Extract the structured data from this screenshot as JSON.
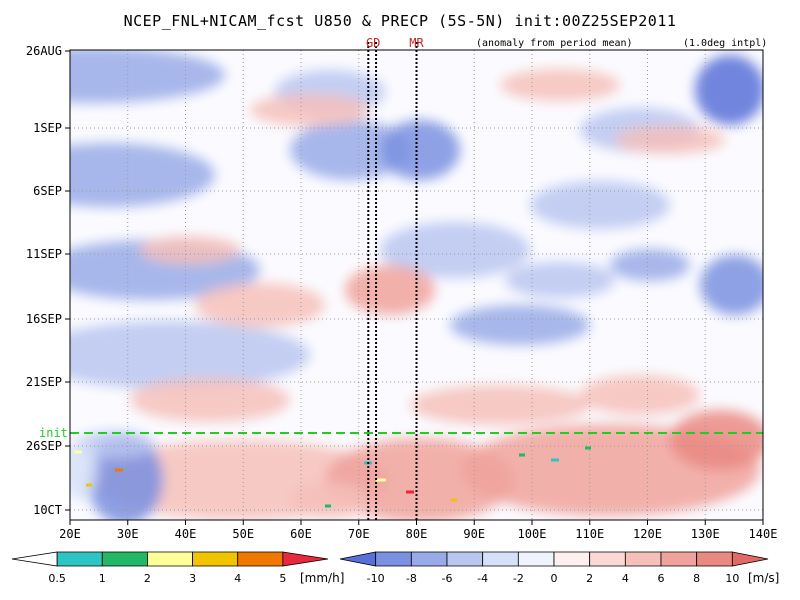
{
  "title": "NCEP_FNL+NICAM_fcst U850 & PRECP (5S-5N) init:00Z25SEP2011",
  "subtitle_left": "(anomaly from period mean)",
  "subtitle_right": "(1.0deg intpl)",
  "chart_data": {
    "type": "heatmap",
    "x_axis": {
      "range": [
        "20E",
        "140E"
      ],
      "ticks": [
        "20E",
        "30E",
        "40E",
        "50E",
        "60E",
        "70E",
        "80E",
        "90E",
        "100E",
        "110E",
        "120E",
        "130E",
        "140E"
      ]
    },
    "y_axis": {
      "range": [
        "26AUG",
        "12OCT"
      ],
      "ticks": [
        "26AUG",
        "1SEP",
        "6SEP",
        "11SEP",
        "16SEP",
        "21SEP",
        "26SEP",
        "10CT"
      ]
    },
    "grid": true,
    "markers": [
      {
        "label": "GD",
        "lon": [
          72,
          73
        ]
      },
      {
        "label": "MR",
        "lon": [
          80
        ]
      }
    ],
    "init_line": {
      "label": "init",
      "date": "25SEP"
    },
    "precip_colorbar": {
      "unit": "[mm/h]",
      "ticks": [
        "0.5",
        "1",
        "2",
        "3",
        "4",
        "5"
      ],
      "colors": [
        "#ffffff",
        "#2ec4c4",
        "#22b866",
        "#ffff99",
        "#f2c400",
        "#f07800",
        "#e8283c"
      ]
    },
    "u850_colorbar": {
      "unit": "[m/s]",
      "ticks": [
        "-10",
        "-8",
        "-6",
        "-4",
        "-2",
        "0",
        "2",
        "4",
        "6",
        "8",
        "10"
      ],
      "colors": [
        "#5870d8",
        "#7a90e0",
        "#98aae8",
        "#b8c6f0",
        "#d6e0f8",
        "#eef3fd",
        "#fdf0ee",
        "#fad8d4",
        "#f6c0ba",
        "#f0a29c",
        "#ea8882",
        "#e26a66"
      ]
    },
    "colors": {
      "marker_lines": "#000000",
      "marker_labels": "#cc2222",
      "init_line": "#22cc22"
    }
  }
}
